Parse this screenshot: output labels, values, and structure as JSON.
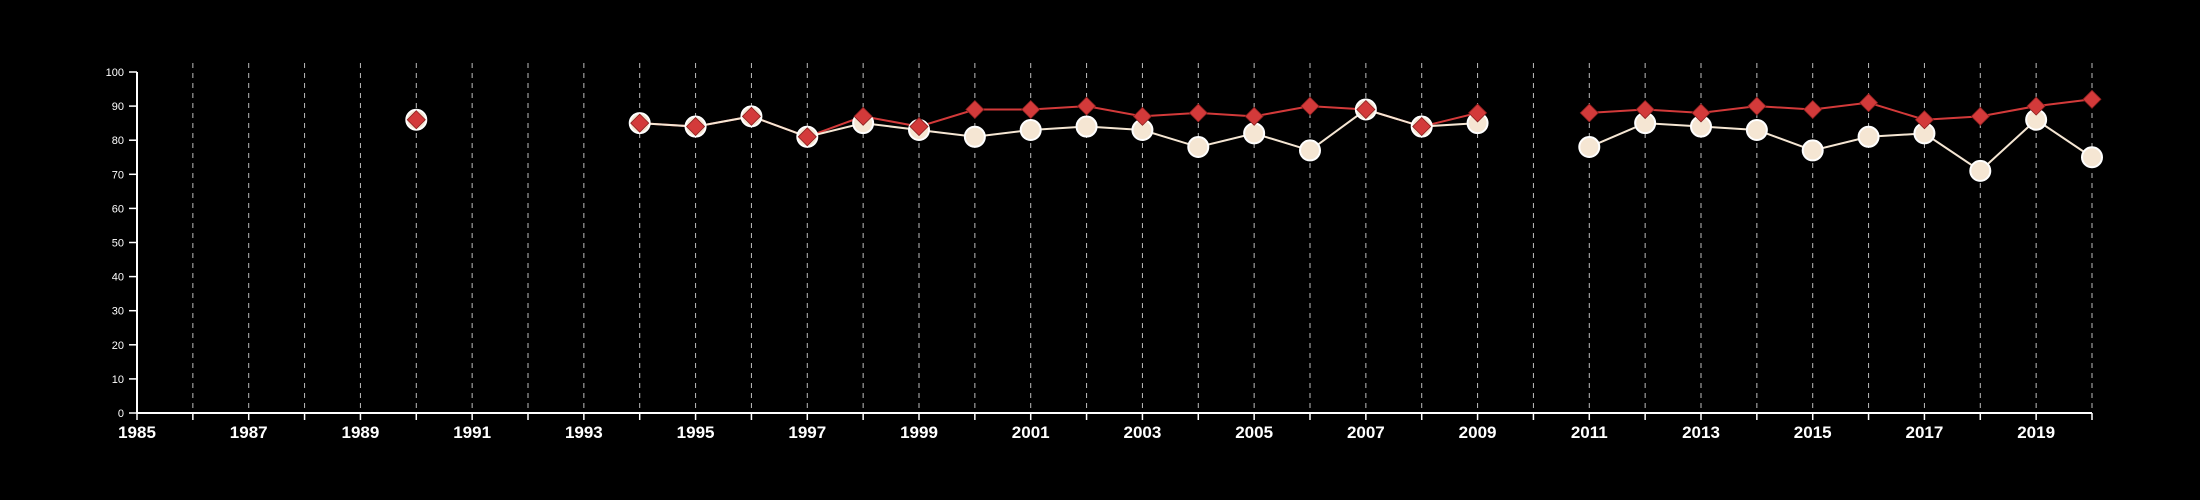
{
  "chart_data": {
    "type": "line",
    "title": "",
    "xlabel": "",
    "ylabel": "",
    "xlim": [
      1985,
      2020
    ],
    "ylim": [
      0,
      100
    ],
    "yticks": [
      0,
      10,
      20,
      30,
      40,
      50,
      60,
      70,
      80,
      90,
      100
    ],
    "xtick_labels": [
      "1985",
      "1987",
      "1989",
      "1991",
      "1993",
      "1995",
      "1997",
      "1999",
      "2001",
      "2003",
      "2005",
      "2007",
      "2009",
      "2011",
      "2013",
      "2015",
      "2017",
      "2019"
    ],
    "grid": "vertical dashed lines at every year",
    "series": [
      {
        "marker": "diamond",
        "color": "#d33a3a",
        "points": [
          [
            1990,
            86
          ],
          [
            1994,
            85
          ],
          [
            1995,
            84
          ],
          [
            1996,
            87
          ],
          [
            1997,
            81
          ],
          [
            1998,
            87
          ],
          [
            1999,
            84
          ],
          [
            2000,
            89
          ],
          [
            2001,
            89
          ],
          [
            2002,
            90
          ],
          [
            2003,
            87
          ],
          [
            2004,
            88
          ],
          [
            2005,
            87
          ],
          [
            2006,
            90
          ],
          [
            2007,
            89
          ],
          [
            2008,
            84
          ],
          [
            2009,
            88
          ],
          [
            2011,
            88
          ],
          [
            2012,
            89
          ],
          [
            2013,
            88
          ],
          [
            2014,
            90
          ],
          [
            2015,
            89
          ],
          [
            2016,
            91
          ],
          [
            2017,
            86
          ],
          [
            2018,
            87
          ],
          [
            2019,
            90
          ],
          [
            2020,
            92
          ]
        ]
      },
      {
        "marker": "circle",
        "color": "#f5e6d3",
        "points": [
          [
            1990,
            86
          ],
          [
            1994,
            85
          ],
          [
            1995,
            84
          ],
          [
            1996,
            87
          ],
          [
            1997,
            81
          ],
          [
            1998,
            85
          ],
          [
            1999,
            83
          ],
          [
            2000,
            81
          ],
          [
            2001,
            83
          ],
          [
            2002,
            84
          ],
          [
            2003,
            83
          ],
          [
            2004,
            78
          ],
          [
            2005,
            82
          ],
          [
            2006,
            77
          ],
          [
            2007,
            89
          ],
          [
            2008,
            84
          ],
          [
            2009,
            85
          ],
          [
            2011,
            78
          ],
          [
            2012,
            85
          ],
          [
            2013,
            84
          ],
          [
            2014,
            83
          ],
          [
            2015,
            77
          ],
          [
            2016,
            81
          ],
          [
            2017,
            82
          ],
          [
            2018,
            71
          ],
          [
            2019,
            86
          ],
          [
            2020,
            75
          ]
        ]
      }
    ]
  }
}
